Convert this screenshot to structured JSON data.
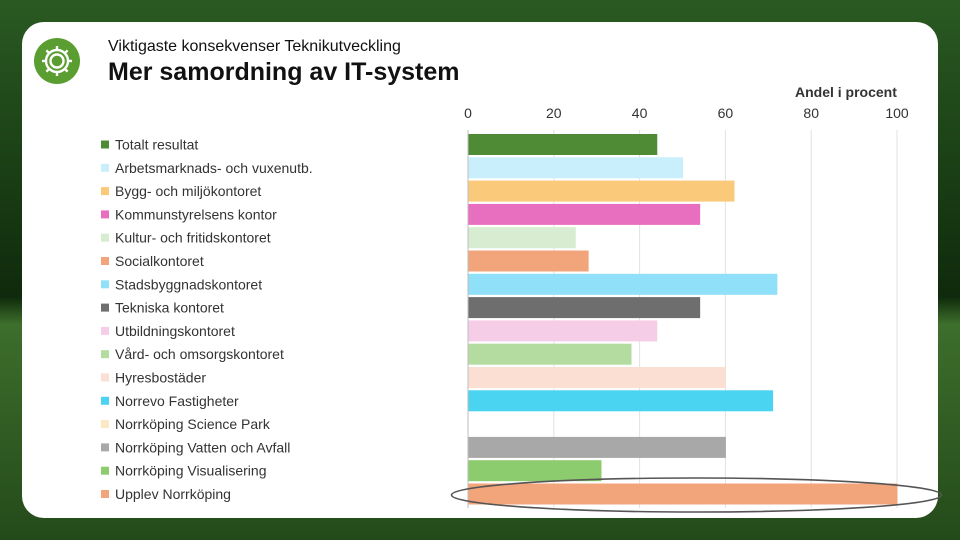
{
  "header": {
    "subtitle": "Viktigaste konsekvenser Teknikutveckling",
    "title": "Mer samordning av IT-system",
    "logo_icon": "gear-icon",
    "brand_color": "#5a9e32"
  },
  "chart_data": {
    "type": "bar",
    "orientation": "horizontal",
    "title": "Mer samordning av IT-system",
    "xlabel": "Andel i procent",
    "ylabel": "",
    "xlim": [
      0,
      100
    ],
    "ticks": [
      0,
      20,
      40,
      60,
      80,
      100
    ],
    "grid": true,
    "legend": "left",
    "highlighted_category": "Upplev Norrköping",
    "categories": [
      "Totalt resultat",
      "Arbetsmarknads- och vuxenutb.",
      "Bygg- och miljökontoret",
      "Kommunstyrelsens kontor",
      "Kultur- och fritidskontoret",
      "Socialkontoret",
      "Stadsbyggnadskontoret",
      "Tekniska kontoret",
      "Utbildningskontoret",
      "Vård- och omsorgskontoret",
      "Hyresbostäder",
      "Norrevo Fastigheter",
      "Norrköping Science Park",
      "Norrköping Vatten och Avfall",
      "Norrköping Visualisering",
      "Upplev Norrköping"
    ],
    "values": [
      44,
      50,
      62,
      54,
      25,
      28,
      72,
      54,
      44,
      38,
      60,
      71,
      0,
      60,
      31,
      100
    ],
    "colors": [
      "#4e8b34",
      "#c9eefc",
      "#fbc97a",
      "#e86fbf",
      "#d7ecd0",
      "#f2a57a",
      "#8fe0f8",
      "#6e6e6e",
      "#f6cde6",
      "#b4dca0",
      "#fadfd2",
      "#4ad4f2",
      "#fde8c4",
      "#a8a8a8",
      "#8ccc6e",
      "#f2a57a"
    ]
  }
}
